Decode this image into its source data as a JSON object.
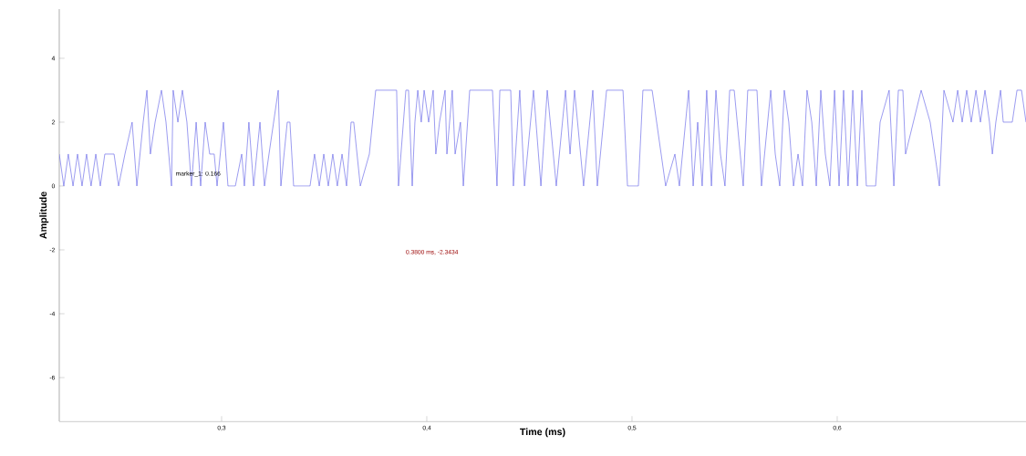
{
  "chart_data": {
    "type": "line",
    "xlabel": "Time (ms)",
    "ylabel": "Amplitude",
    "xlim": [
      0.2209,
      0.692
    ],
    "ylim": [
      -7.37,
      5.54
    ],
    "xticks": [
      {
        "value": 0.3,
        "label": "0,3"
      },
      {
        "value": 0.4,
        "label": "0,4"
      },
      {
        "value": 0.5,
        "label": "0,5"
      },
      {
        "value": 0.6,
        "label": "0,6"
      }
    ],
    "yticks": [
      -6,
      -4,
      -2,
      0,
      2,
      4
    ],
    "grid": false,
    "marker": "none",
    "line_style": "solid",
    "annotations": [
      "marker_1: 0.166",
      "0.3800 ms, -2.3434"
    ],
    "series": [
      {
        "color": "#6a6ae8",
        "x": [
          0.2209,
          0.2231,
          0.2253,
          0.2276,
          0.2298,
          0.232,
          0.2342,
          0.2364,
          0.2387,
          0.2409,
          0.2431,
          0.2476,
          0.2498,
          0.2529,
          0.2564,
          0.2587,
          0.2618,
          0.2636,
          0.2653,
          0.2676,
          0.2707,
          0.2729,
          0.2756,
          0.2764,
          0.2787,
          0.2809,
          0.2831,
          0.2853,
          0.2876,
          0.2898,
          0.292,
          0.2942,
          0.2964,
          0.2978,
          0.3009,
          0.3031,
          0.3067,
          0.3098,
          0.3111,
          0.3133,
          0.3156,
          0.3187,
          0.3209,
          0.3231,
          0.3276,
          0.3289,
          0.332,
          0.3333,
          0.3351,
          0.3431,
          0.3453,
          0.3476,
          0.3498,
          0.352,
          0.3542,
          0.3564,
          0.3587,
          0.3609,
          0.3631,
          0.3644,
          0.3676,
          0.372,
          0.3751,
          0.3853,
          0.3862,
          0.3898,
          0.3911,
          0.3929,
          0.3942,
          0.3956,
          0.3973,
          0.3987,
          0.4009,
          0.4031,
          0.4044,
          0.4062,
          0.4089,
          0.4098,
          0.4124,
          0.4138,
          0.4164,
          0.4178,
          0.4209,
          0.432,
          0.4342,
          0.4356,
          0.4409,
          0.4422,
          0.4453,
          0.4476,
          0.452,
          0.4556,
          0.4587,
          0.4631,
          0.4676,
          0.4698,
          0.472,
          0.4764,
          0.4809,
          0.4831,
          0.4876,
          0.4956,
          0.4978,
          0.5031,
          0.5053,
          0.5098,
          0.5142,
          0.5164,
          0.5209,
          0.5231,
          0.5276,
          0.5298,
          0.532,
          0.5342,
          0.5364,
          0.5387,
          0.5409,
          0.5431,
          0.5453,
          0.5476,
          0.5498,
          0.5542,
          0.5564,
          0.5609,
          0.5631,
          0.5676,
          0.5698,
          0.572,
          0.5742,
          0.5764,
          0.5787,
          0.5809,
          0.5831,
          0.5853,
          0.5876,
          0.5898,
          0.592,
          0.5942,
          0.5964,
          0.5987,
          0.6009,
          0.6031,
          0.6053,
          0.6076,
          0.6098,
          0.612,
          0.6142,
          0.6187,
          0.6209,
          0.6253,
          0.6276,
          0.6298,
          0.632,
          0.6333,
          0.6409,
          0.6453,
          0.6498,
          0.652,
          0.6564,
          0.6587,
          0.6609,
          0.6631,
          0.6653,
          0.6676,
          0.6698,
          0.672,
          0.6742,
          0.6756,
          0.6773,
          0.6796,
          0.6809,
          0.6853,
          0.6876,
          0.6898,
          0.692
        ],
        "values": [
          1,
          0,
          1,
          0,
          1,
          0,
          1,
          0,
          1,
          0,
          1,
          1,
          0,
          1,
          2,
          0,
          2,
          3,
          1,
          2,
          3,
          2,
          0,
          3,
          2,
          3,
          2,
          0,
          2,
          0,
          2,
          1,
          1,
          0,
          2,
          0,
          0,
          1,
          0,
          2,
          0,
          2,
          0,
          1,
          3,
          0,
          2,
          2,
          0,
          0,
          1,
          0,
          1,
          0,
          1,
          0,
          1,
          0,
          2,
          2,
          0,
          1,
          3,
          3,
          0,
          3,
          3,
          0,
          2,
          3,
          2,
          3,
          2,
          3,
          1,
          2,
          3,
          1,
          3,
          1,
          2,
          0,
          3,
          3,
          0,
          3,
          3,
          0,
          3,
          0,
          3,
          0,
          3,
          0,
          3,
          1,
          3,
          0,
          3,
          0,
          3,
          3,
          0,
          0,
          3,
          3,
          1,
          0,
          1,
          0,
          3,
          0,
          2,
          0,
          3,
          0,
          3,
          1,
          0,
          3,
          3,
          0,
          3,
          3,
          0,
          3,
          1,
          0,
          3,
          2,
          0,
          1,
          0,
          3,
          2,
          0,
          3,
          1,
          0,
          3,
          0,
          3,
          0,
          3,
          0,
          3,
          0,
          0,
          2,
          3,
          0,
          3,
          3,
          1,
          3,
          2,
          0,
          3,
          2,
          3,
          2,
          3,
          2,
          3,
          2,
          3,
          2,
          1,
          2,
          3,
          2,
          2,
          3,
          3,
          2
        ]
      }
    ]
  }
}
